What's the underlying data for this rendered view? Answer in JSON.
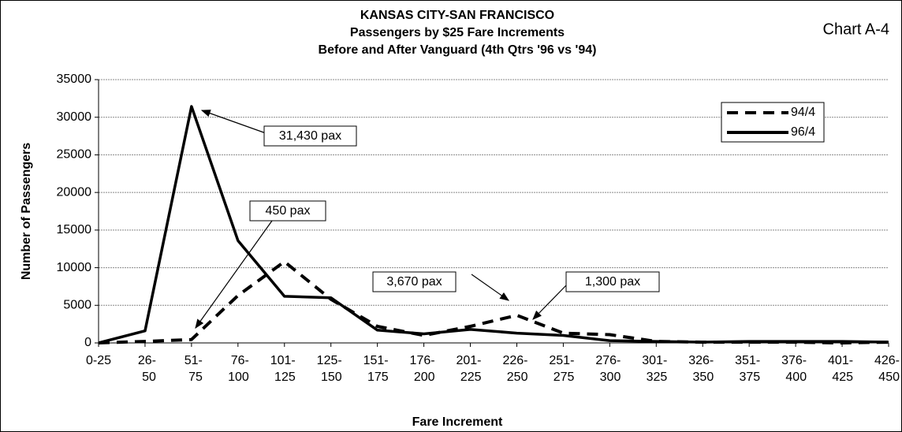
{
  "chart_data": {
    "type": "line",
    "title": [
      "KANSAS CITY-SAN FRANCISCO",
      "Passengers by $25 Fare Increments",
      "Before and After Vanguard (4th Qtrs '96 vs '94)"
    ],
    "chart_label": "Chart A-4",
    "x_label": "Fare Increment",
    "y_label": "Number of Passengers",
    "categories": [
      "0-25",
      "26-50",
      "51-75",
      "76-100",
      "101-125",
      "125-150",
      "151-175",
      "176-200",
      "201-225",
      "226-250",
      "251-275",
      "276-300",
      "301-325",
      "326-350",
      "351-375",
      "376-400",
      "401-425",
      "426-450"
    ],
    "series": [
      {
        "name": "94/4",
        "color": "#000000",
        "style": "dashed",
        "values": [
          0,
          200,
          450,
          6300,
          10800,
          5800,
          2200,
          1000,
          2200,
          3670,
          1300,
          1100,
          200,
          100,
          100,
          100,
          0,
          100
        ]
      },
      {
        "name": "96/4",
        "color": "#000000",
        "style": "solid",
        "values": [
          0,
          1600,
          31430,
          13600,
          6200,
          6000,
          1700,
          1200,
          1800,
          1300,
          1000,
          300,
          200,
          100,
          200,
          200,
          200,
          100
        ]
      }
    ],
    "annotations": [
      "31,430 pax",
      "450 pax",
      "3,670 pax",
      "1,300 pax"
    ],
    "ylim": [
      0,
      35000
    ],
    "yticks": [
      0,
      5000,
      10000,
      15000,
      20000,
      25000,
      30000,
      35000
    ],
    "grid": true,
    "legend": "upper right"
  }
}
